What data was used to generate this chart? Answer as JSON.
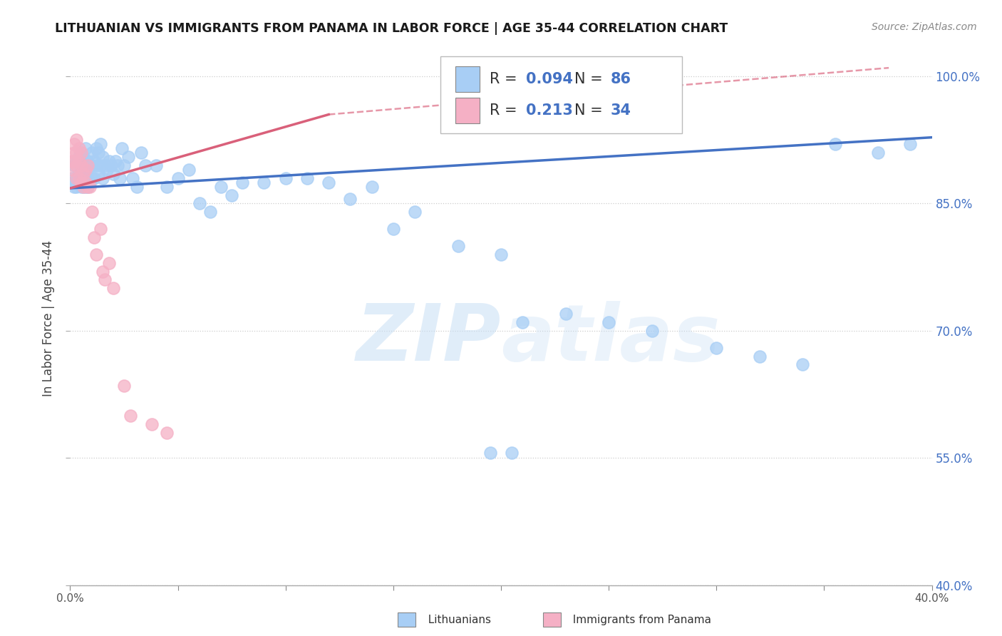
{
  "title": "LITHUANIAN VS IMMIGRANTS FROM PANAMA IN LABOR FORCE | AGE 35-44 CORRELATION CHART",
  "source": "Source: ZipAtlas.com",
  "ylabel": "In Labor Force | Age 35-44",
  "xlim": [
    0.0,
    0.4
  ],
  "ylim": [
    0.4,
    1.03
  ],
  "xticks": [
    0.0,
    0.05,
    0.1,
    0.15,
    0.2,
    0.25,
    0.3,
    0.35,
    0.4
  ],
  "yticks": [
    0.4,
    0.55,
    0.7,
    0.85,
    1.0
  ],
  "ytick_labels": [
    "40.0%",
    "55.0%",
    "70.0%",
    "85.0%",
    "100.0%"
  ],
  "legend_r_blue": "0.094",
  "legend_n_blue": "86",
  "legend_r_pink": "0.213",
  "legend_n_pink": "34",
  "blue_color": "#a8cef5",
  "pink_color": "#f5b0c5",
  "blue_line_color": "#4472c4",
  "pink_line_color": "#d9607a",
  "watermark_zip": "ZIP",
  "watermark_atlas": "atlas",
  "blue_x": [
    0.001,
    0.001,
    0.002,
    0.002,
    0.003,
    0.003,
    0.003,
    0.004,
    0.004,
    0.004,
    0.005,
    0.005,
    0.005,
    0.005,
    0.006,
    0.006,
    0.006,
    0.006,
    0.007,
    0.007,
    0.007,
    0.007,
    0.008,
    0.008,
    0.008,
    0.009,
    0.009,
    0.01,
    0.01,
    0.01,
    0.011,
    0.011,
    0.012,
    0.012,
    0.013,
    0.013,
    0.014,
    0.014,
    0.015,
    0.015,
    0.016,
    0.017,
    0.018,
    0.019,
    0.02,
    0.021,
    0.022,
    0.023,
    0.024,
    0.025,
    0.027,
    0.029,
    0.031,
    0.033,
    0.035,
    0.04,
    0.045,
    0.05,
    0.055,
    0.06,
    0.065,
    0.07,
    0.075,
    0.08,
    0.09,
    0.1,
    0.11,
    0.12,
    0.13,
    0.14,
    0.15,
    0.16,
    0.18,
    0.2,
    0.21,
    0.23,
    0.25,
    0.27,
    0.3,
    0.32,
    0.34,
    0.355,
    0.375,
    0.39,
    0.195,
    0.205
  ],
  "blue_y": [
    0.88,
    0.875,
    0.895,
    0.87,
    0.9,
    0.88,
    0.87,
    0.905,
    0.885,
    0.875,
    0.91,
    0.895,
    0.88,
    0.87,
    0.905,
    0.89,
    0.88,
    0.87,
    0.915,
    0.9,
    0.885,
    0.87,
    0.9,
    0.88,
    0.87,
    0.895,
    0.875,
    0.91,
    0.895,
    0.88,
    0.9,
    0.88,
    0.915,
    0.895,
    0.91,
    0.885,
    0.92,
    0.895,
    0.905,
    0.88,
    0.895,
    0.89,
    0.9,
    0.895,
    0.885,
    0.9,
    0.895,
    0.88,
    0.915,
    0.895,
    0.905,
    0.88,
    0.87,
    0.91,
    0.895,
    0.895,
    0.87,
    0.88,
    0.89,
    0.85,
    0.84,
    0.87,
    0.86,
    0.875,
    0.875,
    0.88,
    0.88,
    0.875,
    0.855,
    0.87,
    0.82,
    0.84,
    0.8,
    0.79,
    0.71,
    0.72,
    0.71,
    0.7,
    0.68,
    0.67,
    0.66,
    0.92,
    0.91,
    0.92,
    0.556,
    0.556
  ],
  "pink_x": [
    0.001,
    0.001,
    0.002,
    0.002,
    0.002,
    0.003,
    0.003,
    0.003,
    0.003,
    0.004,
    0.004,
    0.004,
    0.005,
    0.005,
    0.005,
    0.006,
    0.006,
    0.007,
    0.007,
    0.008,
    0.008,
    0.009,
    0.01,
    0.011,
    0.012,
    0.014,
    0.015,
    0.016,
    0.018,
    0.02,
    0.025,
    0.028,
    0.038,
    0.045
  ],
  "pink_y": [
    0.9,
    0.89,
    0.92,
    0.91,
    0.9,
    0.925,
    0.91,
    0.895,
    0.88,
    0.915,
    0.9,
    0.88,
    0.91,
    0.895,
    0.875,
    0.885,
    0.87,
    0.89,
    0.875,
    0.895,
    0.87,
    0.87,
    0.84,
    0.81,
    0.79,
    0.82,
    0.77,
    0.76,
    0.78,
    0.75,
    0.635,
    0.6,
    0.59,
    0.58
  ],
  "blue_trend_x0": 0.0,
  "blue_trend_y0": 0.868,
  "blue_trend_x1": 0.4,
  "blue_trend_y1": 0.928,
  "pink_trend_x0": 0.0,
  "pink_trend_y0": 0.868,
  "pink_trend_x1_solid": 0.12,
  "pink_trend_y1_solid": 0.955,
  "pink_trend_x1_dash": 0.38,
  "pink_trend_y1_dash": 1.01
}
